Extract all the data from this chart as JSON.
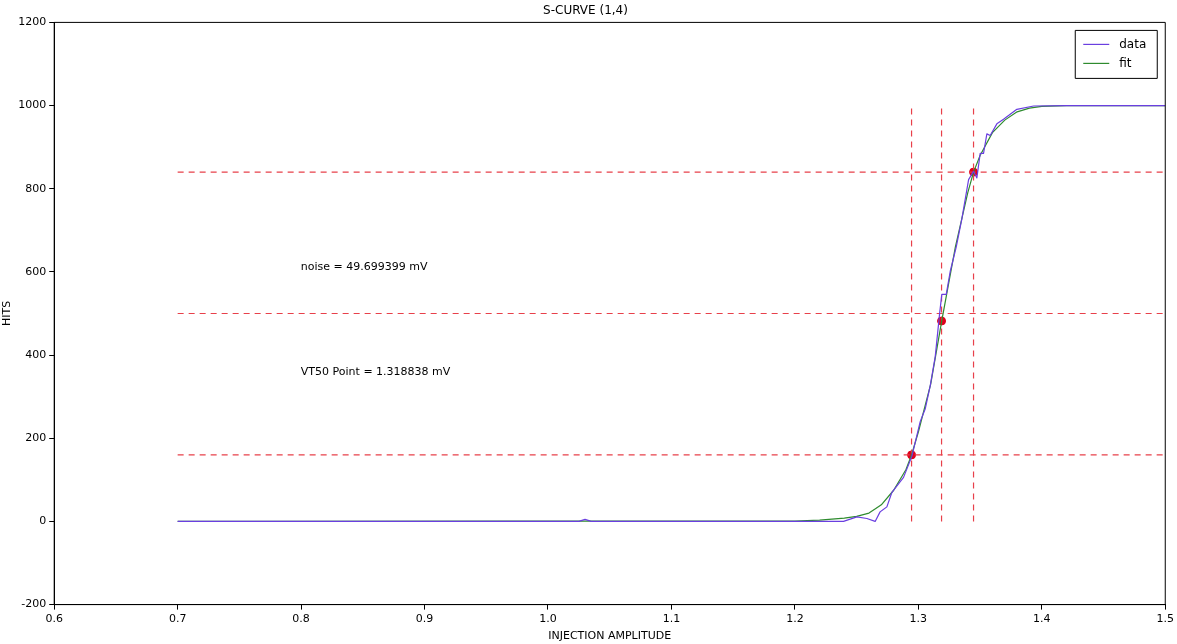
{
  "chart_data": {
    "type": "line",
    "title": "S-CURVE (1,4)",
    "xlabel": "INJECTION AMPLITUDE",
    "ylabel": "HITS",
    "xlim": [
      0.6,
      1.5
    ],
    "xticks": [
      0.6,
      0.7,
      0.8,
      0.9,
      {
        "value": 1,
        "label": "1.0"
      },
      1.1,
      1.2,
      1.3,
      1.4,
      1.5
    ],
    "ylim": [
      -200,
      1200
    ],
    "yticks": [
      -200,
      0,
      200,
      400,
      600,
      800,
      1000,
      1200
    ],
    "grid": false,
    "legend": "top right",
    "marker": "none",
    "line_style": "solid",
    "annotations": [
      "noise = 49.699399 mV",
      "VT50 Point = 1.318838 mV"
    ],
    "series": [
      {
        "name": "data",
        "type": "line",
        "color": "#6a3fe0",
        "x": [
          0.7,
          1.025,
          1.03,
          1.035,
          1.215,
          1.2394,
          1.2502,
          1.2583,
          1.265,
          1.269,
          1.2745,
          1.2786,
          1.288,
          1.2948,
          1.3015,
          1.3056,
          1.3096,
          1.3137,
          1.3172,
          1.319,
          1.3226,
          1.3258,
          1.3307,
          1.3352,
          1.3407,
          1.3447,
          1.3474,
          1.3501,
          1.3528,
          1.3555,
          1.3582,
          1.3636,
          1.369,
          1.3798,
          1.3934,
          1.42,
          1.5
        ],
        "values": [
          0,
          0,
          5,
          0,
          0,
          0,
          11,
          7,
          0,
          23,
          35,
          70,
          106,
          157,
          240,
          271,
          326,
          397,
          499,
          546,
          546,
          601,
          660,
          727,
          822,
          842,
          826,
          885,
          885,
          932,
          928,
          956,
          967,
          991,
          999,
          1000,
          1000
        ]
      },
      {
        "name": "fit",
        "type": "line",
        "color": "#2e8b2e",
        "x": [
          0.7,
          1.2,
          1.22,
          1.24,
          1.25,
          1.26,
          1.27,
          1.28,
          1.29,
          1.2945,
          1.3,
          1.31,
          1.3188,
          1.33,
          1.34,
          1.3447,
          1.35,
          1.36,
          1.37,
          1.38,
          1.39,
          1.4,
          1.42,
          1.5
        ],
        "values": [
          0,
          1,
          3,
          8,
          12,
          20,
          40,
          75,
          125,
          160,
          215,
          330,
          480,
          660,
          790,
          840,
          880,
          935,
          965,
          985,
          994,
          998,
          1000,
          1000
        ]
      },
      {
        "type": "line",
        "color": "#e8404a",
        "line_style": "dashed",
        "x": [
          0.7,
          1.5
        ],
        "values": [
          840,
          840
        ]
      },
      {
        "type": "line",
        "color": "#e8404a",
        "line_style": "dashed",
        "x": [
          0.7,
          1.5
        ],
        "values": [
          500,
          500
        ]
      },
      {
        "type": "line",
        "color": "#e8404a",
        "line_style": "dashed",
        "x": [
          0.7,
          1.5
        ],
        "values": [
          160,
          160
        ]
      },
      {
        "type": "line",
        "color": "#e8404a",
        "line_style": "dashed",
        "x": [
          1.2945,
          1.2945
        ],
        "values": [
          0,
          1000
        ]
      },
      {
        "type": "line",
        "color": "#e8404a",
        "line_style": "dashed",
        "x": [
          1.3188,
          1.3188
        ],
        "values": [
          0,
          1000
        ]
      },
      {
        "type": "line",
        "color": "#e8404a",
        "line_style": "dashed",
        "x": [
          1.3447,
          1.3447
        ],
        "values": [
          0,
          1000
        ]
      },
      {
        "type": "scatter",
        "color": "#e0001b",
        "marker": "circle",
        "x": [
          1.2945,
          1.3188,
          1.3447
        ],
        "values": [
          160,
          482,
          840
        ]
      }
    ]
  }
}
